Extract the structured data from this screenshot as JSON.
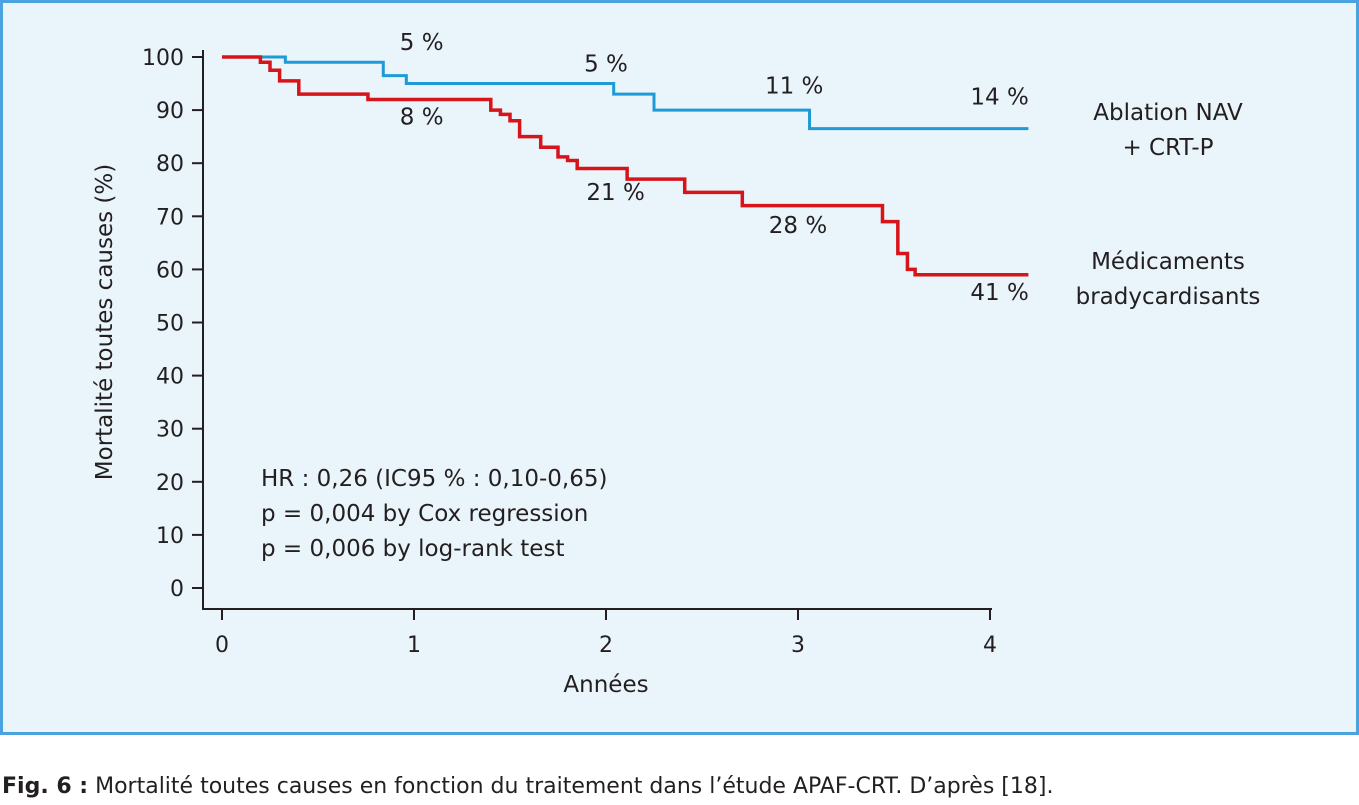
{
  "chart_data": {
    "type": "line",
    "step": true,
    "xlabel": "Années",
    "ylabel": "Mortalité toutes causes (%)",
    "xlim": [
      0,
      4
    ],
    "ylim": [
      0,
      100
    ],
    "xticks": [
      0,
      1,
      2,
      3,
      4
    ],
    "yticks": [
      0,
      10,
      20,
      30,
      40,
      50,
      60,
      70,
      80,
      90,
      100
    ],
    "grid": false,
    "series": [
      {
        "name": "Ablation NAV + CRT-P",
        "legend_lines": [
          "Ablation NAV",
          "+ CRT-P"
        ],
        "color": "#1e9ad6",
        "x": [
          0,
          0.33,
          0.84,
          0.96,
          2.04,
          2.25,
          3.06,
          4.2
        ],
        "y": [
          100,
          99,
          96.5,
          95,
          93,
          90,
          86.5,
          86.5
        ]
      },
      {
        "name": "Médicaments bradycardisants",
        "legend_lines": [
          "Médicaments",
          "bradycardisants"
        ],
        "color": "#d7141a",
        "x": [
          0,
          0.2,
          0.25,
          0.3,
          0.4,
          0.76,
          1.4,
          1.45,
          1.5,
          1.55,
          1.66,
          1.75,
          1.8,
          1.85,
          2.11,
          2.41,
          2.71,
          3.44,
          3.52,
          3.57,
          3.61,
          4.2
        ],
        "y": [
          100,
          99,
          97.5,
          95.5,
          93,
          92,
          90,
          89.2,
          88,
          85,
          83,
          81.2,
          80.5,
          79,
          77,
          74.5,
          72,
          69,
          63,
          60,
          59,
          59
        ]
      }
    ],
    "annotations": [
      {
        "text": "5 %",
        "x": 1.04,
        "y": 101.3,
        "series": 0
      },
      {
        "text": "5 %",
        "x": 2.0,
        "y": 97.3,
        "series": 0
      },
      {
        "text": "11 %",
        "x": 2.98,
        "y": 93.1,
        "series": 0
      },
      {
        "text": "14 %",
        "x": 4.05,
        "y": 91.1,
        "series": 0
      },
      {
        "text": "8 %",
        "x": 1.04,
        "y": 87.3,
        "series": 1
      },
      {
        "text": "21 %",
        "x": 2.05,
        "y": 73.1,
        "series": 1
      },
      {
        "text": "28 %",
        "x": 3.0,
        "y": 66.9,
        "series": 1
      },
      {
        "text": "41 %",
        "x": 4.05,
        "y": 54.2,
        "series": 1
      }
    ],
    "stats": [
      "HR : 0,26 (IC95 % : 0,10-0,65)",
      "p = 0,004 by Cox regression",
      "p = 0,006 by log-rank test"
    ]
  },
  "caption": {
    "prefix": "Fig. 6 :",
    "text": " Mortalité toutes causes en fonction du traitement dans l’étude APAF-CRT. D’après [18]."
  }
}
